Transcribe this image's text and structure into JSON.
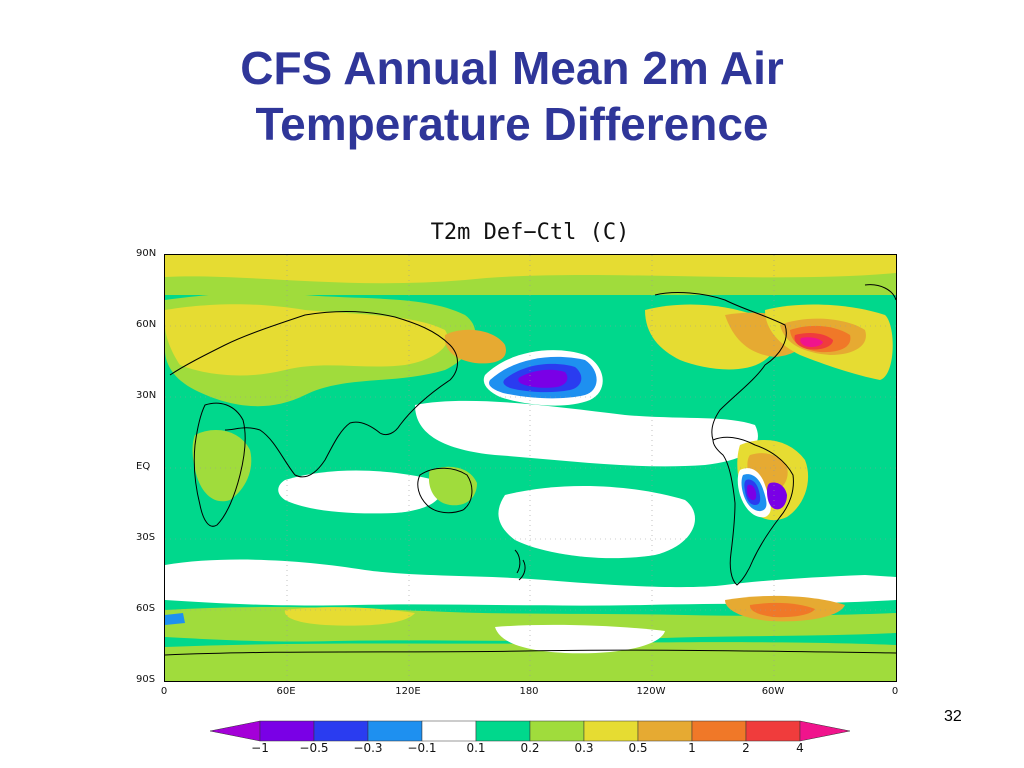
{
  "slide": {
    "title_line1": "CFS Annual Mean 2m Air",
    "title_line2": "Temperature Difference",
    "page_number": "32"
  },
  "map": {
    "title": "T2m  Def−Ctl  (C)",
    "lat_labels": [
      "90N",
      "60N",
      "30N",
      "EQ",
      "30S",
      "60S",
      "90S"
    ],
    "lon_labels": [
      "0",
      "60E",
      "120E",
      "180",
      "120W",
      "60W",
      "0"
    ],
    "colorbar": {
      "labels": [
        "−1",
        "−0.5",
        "−0.3",
        "−0.1",
        "0.1",
        "0.2",
        "0.3",
        "0.5",
        "1",
        "2",
        "4"
      ],
      "colors": [
        "#a400d8",
        "#7a00e6",
        "#2a3cf0",
        "#1e90f0",
        "#ffffff",
        "#00d88c",
        "#a0dc3c",
        "#e6dc32",
        "#e6aa32",
        "#f07828",
        "#f03c3c",
        "#f0148c"
      ]
    },
    "palette": {
      "white": "#ffffff",
      "green": "#00d88c",
      "lightgreen": "#a0dc3c",
      "yellow": "#e6dc32",
      "orange": "#e6aa32",
      "darkorange": "#f07828",
      "red": "#f03c3c",
      "magenta": "#f0148c",
      "lightblue": "#1e90f0",
      "blue": "#2a3cf0",
      "purple": "#7a00e6"
    }
  }
}
